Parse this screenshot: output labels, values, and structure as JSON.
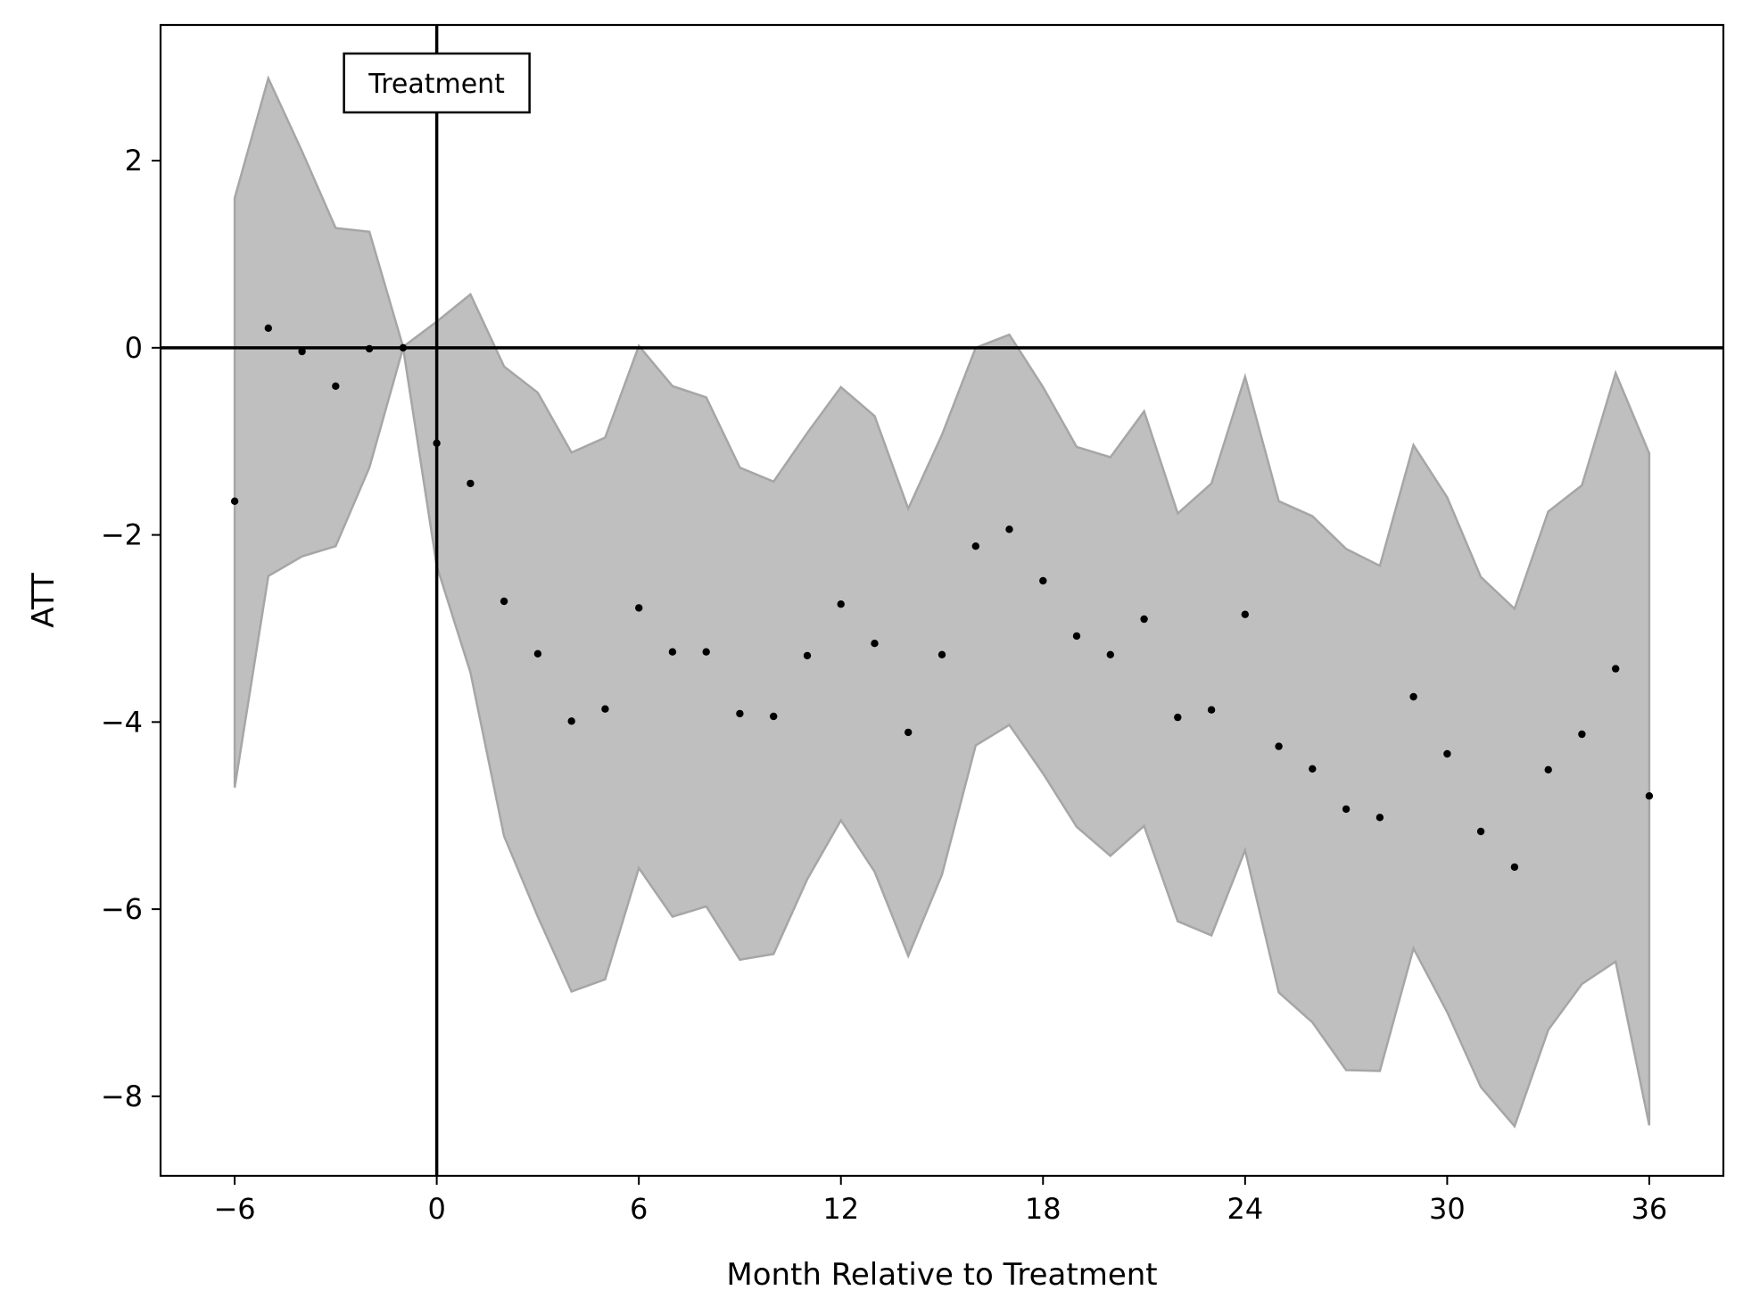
{
  "chart_data": {
    "type": "scatter",
    "title": "",
    "xlabel": "Month Relative to Treatment",
    "ylabel": "ATT",
    "xlim": [
      -8.2,
      38.2
    ],
    "ylim": [
      -8.85,
      3.45
    ],
    "xticks": [
      -6,
      0,
      6,
      12,
      18,
      24,
      30,
      36
    ],
    "yticks": [
      2,
      0,
      -2,
      -4,
      -6,
      -8
    ],
    "ytick_labels": [
      "2",
      "0",
      "−2",
      "−4",
      "−6",
      "−8"
    ],
    "grid": false,
    "reference_lines": {
      "horizontal_y": 0,
      "vertical_x": 0
    },
    "annotation": {
      "text": "Treatment",
      "x": 0
    },
    "colors": {
      "band": "#bfbfbf",
      "band_edge": "#a6a6a6",
      "point": "#000000",
      "reference": "#000000"
    },
    "series": [
      {
        "x": [
          -6,
          -5,
          -4,
          -3,
          -2,
          -1,
          0,
          1,
          2,
          3,
          4,
          5,
          6,
          7,
          8,
          9,
          10,
          11,
          12,
          13,
          14,
          15,
          16,
          17,
          18,
          19,
          20,
          21,
          22,
          23,
          24,
          25,
          26,
          27,
          28,
          29,
          30,
          31,
          32,
          33,
          34,
          35,
          36
        ],
        "values": [
          -1.64,
          0.21,
          -0.04,
          -0.41,
          -0.01,
          0.0,
          -1.02,
          -1.45,
          -2.71,
          -3.27,
          -3.99,
          -3.86,
          -2.78,
          -3.25,
          -3.25,
          -3.91,
          -3.94,
          -3.29,
          -2.74,
          -3.16,
          -4.11,
          -3.28,
          -2.12,
          -1.94,
          -2.49,
          -3.08,
          -3.28,
          -2.9,
          -3.95,
          -3.87,
          -2.85,
          -4.26,
          -4.5,
          -4.93,
          -5.02,
          -3.73,
          -4.34,
          -5.17,
          -5.55,
          -4.51,
          -4.13,
          -3.43,
          -4.79
        ],
        "ci_upper": [
          1.6,
          2.88,
          2.1,
          1.28,
          1.24,
          0.01,
          0.28,
          0.57,
          -0.2,
          -0.48,
          -1.12,
          -0.96,
          0.02,
          -0.41,
          -0.53,
          -1.28,
          -1.43,
          -0.91,
          -0.42,
          -0.73,
          -1.72,
          -0.93,
          0.0,
          0.14,
          -0.42,
          -1.06,
          -1.17,
          -0.68,
          -1.77,
          -1.45,
          -0.31,
          -1.64,
          -1.8,
          -2.15,
          -2.33,
          -1.04,
          -1.6,
          -2.45,
          -2.79,
          -1.75,
          -1.47,
          -0.27,
          -1.13
        ],
        "ci_lower": [
          -4.7,
          -2.44,
          -2.23,
          -2.12,
          -1.28,
          0.0,
          -2.33,
          -3.47,
          -5.22,
          -6.08,
          -6.88,
          -6.75,
          -5.56,
          -6.08,
          -5.97,
          -6.54,
          -6.48,
          -5.68,
          -5.05,
          -5.6,
          -6.5,
          -5.63,
          -4.25,
          -4.03,
          -4.55,
          -5.12,
          -5.43,
          -5.11,
          -6.13,
          -6.28,
          -5.37,
          -6.89,
          -7.21,
          -7.72,
          -7.73,
          -6.42,
          -7.1,
          -7.9,
          -8.32,
          -7.29,
          -6.8,
          -6.56,
          -8.31
        ]
      }
    ]
  }
}
